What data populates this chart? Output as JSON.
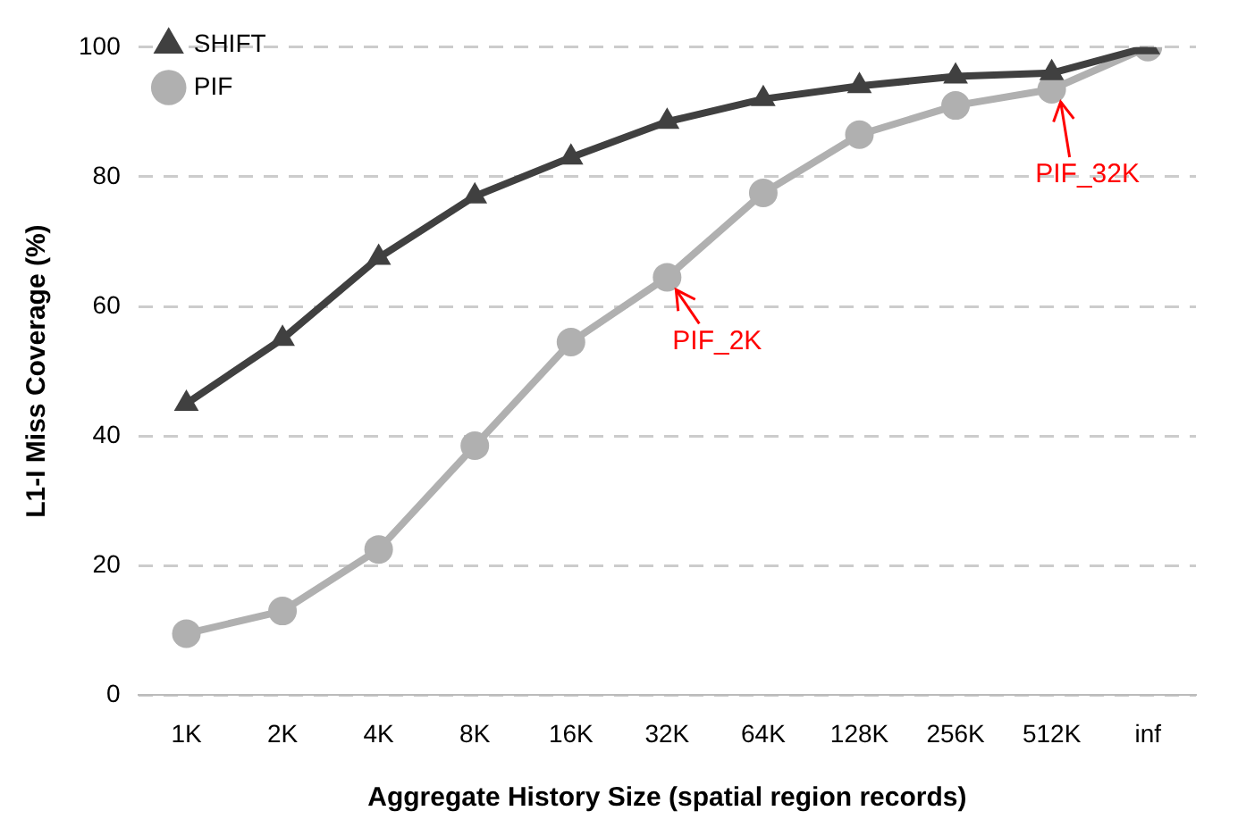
{
  "chart_data": {
    "type": "line",
    "xlabel": "Aggregate History Size (spatial region records)",
    "ylabel": "L1-I Miss Coverage (%)",
    "categories": [
      "1K",
      "2K",
      "4K",
      "8K",
      "16K",
      "32K",
      "64K",
      "128K",
      "256K",
      "512K",
      "inf"
    ],
    "series": [
      {
        "name": "SHIFT",
        "color": "#404040",
        "marker": "triangle",
        "values": [
          45,
          55,
          67.5,
          77,
          83,
          88.5,
          92,
          94,
          95.5,
          96,
          100
        ]
      },
      {
        "name": "PIF",
        "color": "#b0b0b0",
        "marker": "circle",
        "values": [
          9.5,
          13,
          22.5,
          38.5,
          54.5,
          64.5,
          77.5,
          86.5,
          91,
          93.5,
          100
        ]
      }
    ],
    "ylim": [
      0,
      100
    ],
    "yticks": [
      0,
      20,
      40,
      60,
      80,
      100
    ],
    "grid": "y",
    "legend": "top left",
    "line_style": "solid",
    "annotations": [
      {
        "text": "PIF_2K",
        "x": "32K",
        "y": 64.5
      },
      {
        "text": "PIF_32K",
        "x": "512K",
        "y": 93.5
      }
    ]
  }
}
